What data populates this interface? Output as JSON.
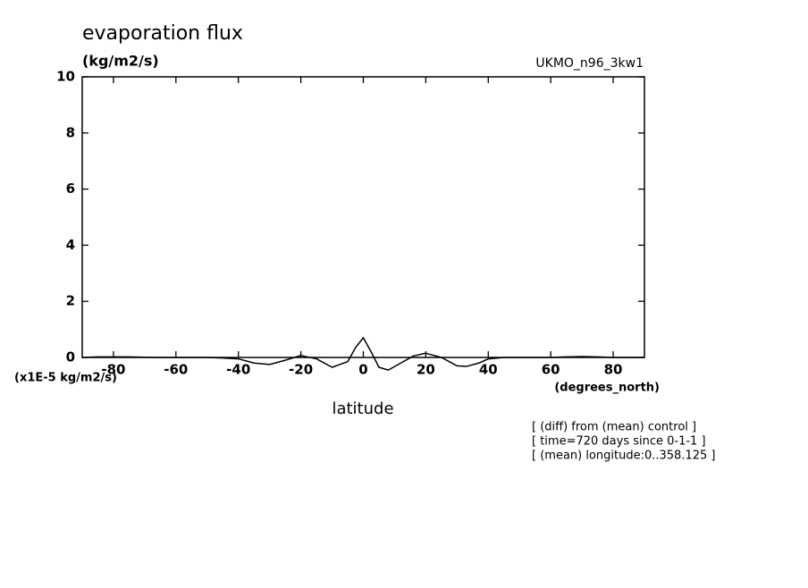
{
  "chart_data": {
    "type": "line",
    "title": "evaporation flux",
    "units": "(kg/m2/s)",
    "model": "UKMO_n96_3kw1",
    "y_scale_label": "(x1E-5 kg/m2/s)",
    "x_units": "(degrees_north)",
    "x_label": "latitude",
    "notes": [
      "[ (diff) from (mean) control ]",
      "[ time=720 days since 0-1-1 ]",
      "[ (mean) longitude:0..358.125 ]"
    ],
    "x": [
      -90,
      -85,
      -80,
      -75,
      -70,
      -65,
      -60,
      -55,
      -50,
      -45,
      -40,
      -35,
      -30,
      -25,
      -20,
      -15,
      -10,
      -5,
      -2.5,
      0,
      2.5,
      5,
      8,
      12,
      16,
      20,
      25,
      30,
      33,
      37,
      40,
      45,
      50,
      55,
      60,
      65,
      70,
      75,
      80,
      85,
      90
    ],
    "series": [
      {
        "name": "evaporation flux",
        "color": "#000000",
        "values": [
          0,
          0.02,
          0.02,
          0.02,
          0.01,
          0,
          0,
          0,
          0,
          -0.02,
          -0.05,
          -0.2,
          -0.25,
          -0.1,
          0.07,
          -0.05,
          -0.35,
          -0.15,
          0.35,
          0.7,
          0.2,
          -0.35,
          -0.45,
          -0.2,
          0.05,
          0.15,
          0,
          -0.3,
          -0.32,
          -0.2,
          -0.05,
          0,
          0,
          0,
          0,
          0.02,
          0.03,
          0.02,
          0,
          0,
          0
        ]
      }
    ],
    "xlim": [
      -90,
      90
    ],
    "xticks": [
      -80,
      -60,
      -40,
      -20,
      0,
      20,
      40,
      60,
      80
    ],
    "ylim": [
      0,
      10
    ],
    "yticks": [
      0,
      2,
      4,
      6,
      8,
      10
    ]
  }
}
